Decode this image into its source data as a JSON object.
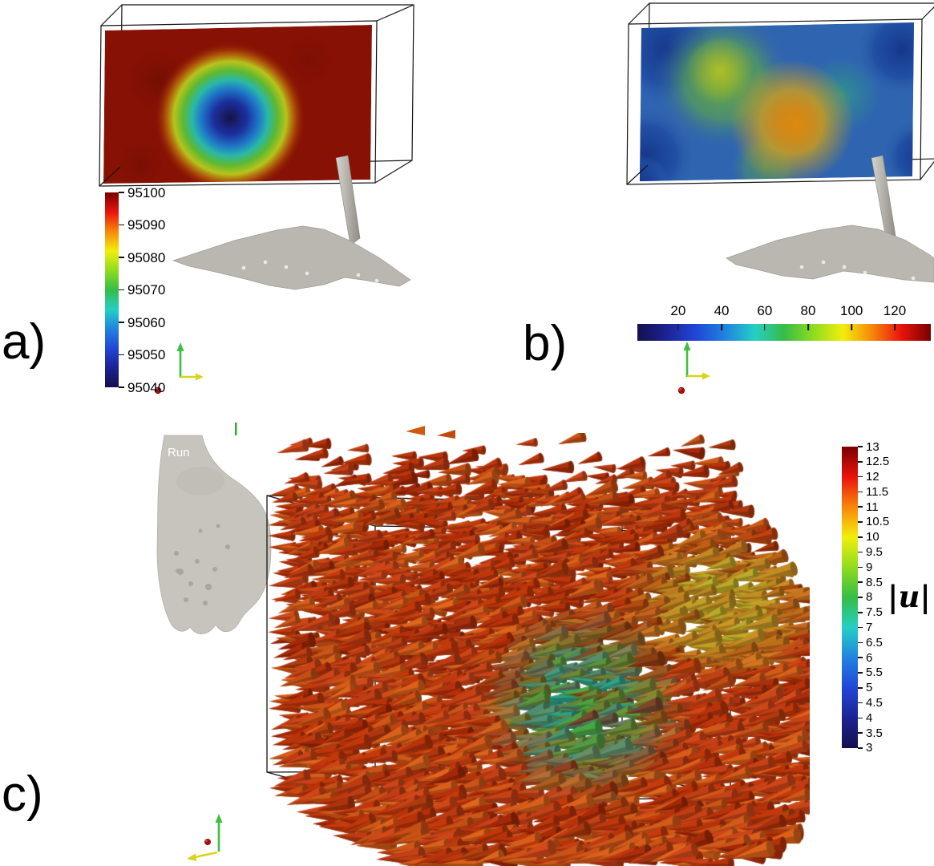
{
  "labels": {
    "a": "a)",
    "b": "b)",
    "c": "c)"
  },
  "overlay": {
    "run_label": "Run"
  },
  "colorbar_a": {
    "orientation": "vertical",
    "ticks": [
      "95100",
      "95090",
      "95080",
      "95070",
      "95060",
      "95050",
      "95040"
    ]
  },
  "colorbar_b": {
    "orientation": "horizontal",
    "ticks": [
      "20",
      "40",
      "60",
      "80",
      "100",
      "120"
    ]
  },
  "colorbar_c": {
    "orientation": "vertical",
    "label": "|u|",
    "ticks": [
      "13",
      "12.5",
      "12",
      "11.5",
      "11",
      "10.5",
      "10",
      "9.5",
      "9",
      "8.5",
      "8",
      "7.5",
      "7",
      "6.5",
      "6",
      "5.5",
      "5",
      "4.5",
      "4",
      "3.5",
      "3"
    ]
  },
  "colors": {
    "colormap_hex": [
      "#14104e",
      "#1c2391",
      "#2146d8",
      "#2083e0",
      "#25cfc4",
      "#35bd47",
      "#8fdc1f",
      "#f2ee0d",
      "#f8860b",
      "#e8130c",
      "#7a0000"
    ],
    "glyph_palette": {
      "orange1": "#d2491a",
      "orange2": "#c63a0c",
      "orange3": "#e0661d",
      "dark_red": "#8f1d04",
      "teal": "#19ab96",
      "green": "#3bb04a",
      "yellow_green": "#b8c32e"
    },
    "drone_gray": "#b9b7b0",
    "slice_a_base": "#871104",
    "slice_b_base": "#2f64b0"
  },
  "chart_data": [
    {
      "type": "heatmap",
      "panel": "a",
      "field": "pressure on a vertical slice through an outline box above a drone",
      "colormap": "jet",
      "colorbar": {
        "orientation": "vertical",
        "min": 95040,
        "max": 95100,
        "ticks": [
          95100,
          95090,
          95080,
          95070,
          95060,
          95050,
          95040
        ]
      },
      "features": "field mostly at maximum ~95100 (dark red) with a circular low-pressure core reaching ~95040 (dark blue) centered left of middle, ringed by cyan-green-yellow"
    },
    {
      "type": "heatmap",
      "panel": "b",
      "field": "scalar slice (turbulence-like quantity) through outline box above a drone",
      "colormap": "jet",
      "colorbar": {
        "orientation": "horizontal",
        "min": 0,
        "max": 135,
        "ticks": [
          20,
          40,
          60,
          80,
          100,
          120
        ]
      },
      "features": "mostly blue field, darker navy patches at left and right edges, yellow-green band in upper-middle-left, orange maximum blob right of center"
    },
    {
      "type": "vector_glyph_3d",
      "panel": "c",
      "variable": "|u|",
      "colormap": "jet",
      "colorbar": {
        "orientation": "vertical",
        "min": 3,
        "max": 13,
        "ticks": [
          13,
          12.5,
          12,
          11.5,
          11,
          10.5,
          10,
          9.5,
          9,
          8.5,
          8,
          7.5,
          7,
          6.5,
          6,
          5.5,
          5,
          4.5,
          4,
          3.5,
          3
        ]
      },
      "features": "dense field of cone glyphs pointing left (≈10-12, orange-red) filling an outline box; low-speed teal-green cluster (≈5-7) lower right of center; yellow-green patch (≈8-9) on the right side; drone body with 'Run' overlay at upper left"
    }
  ]
}
